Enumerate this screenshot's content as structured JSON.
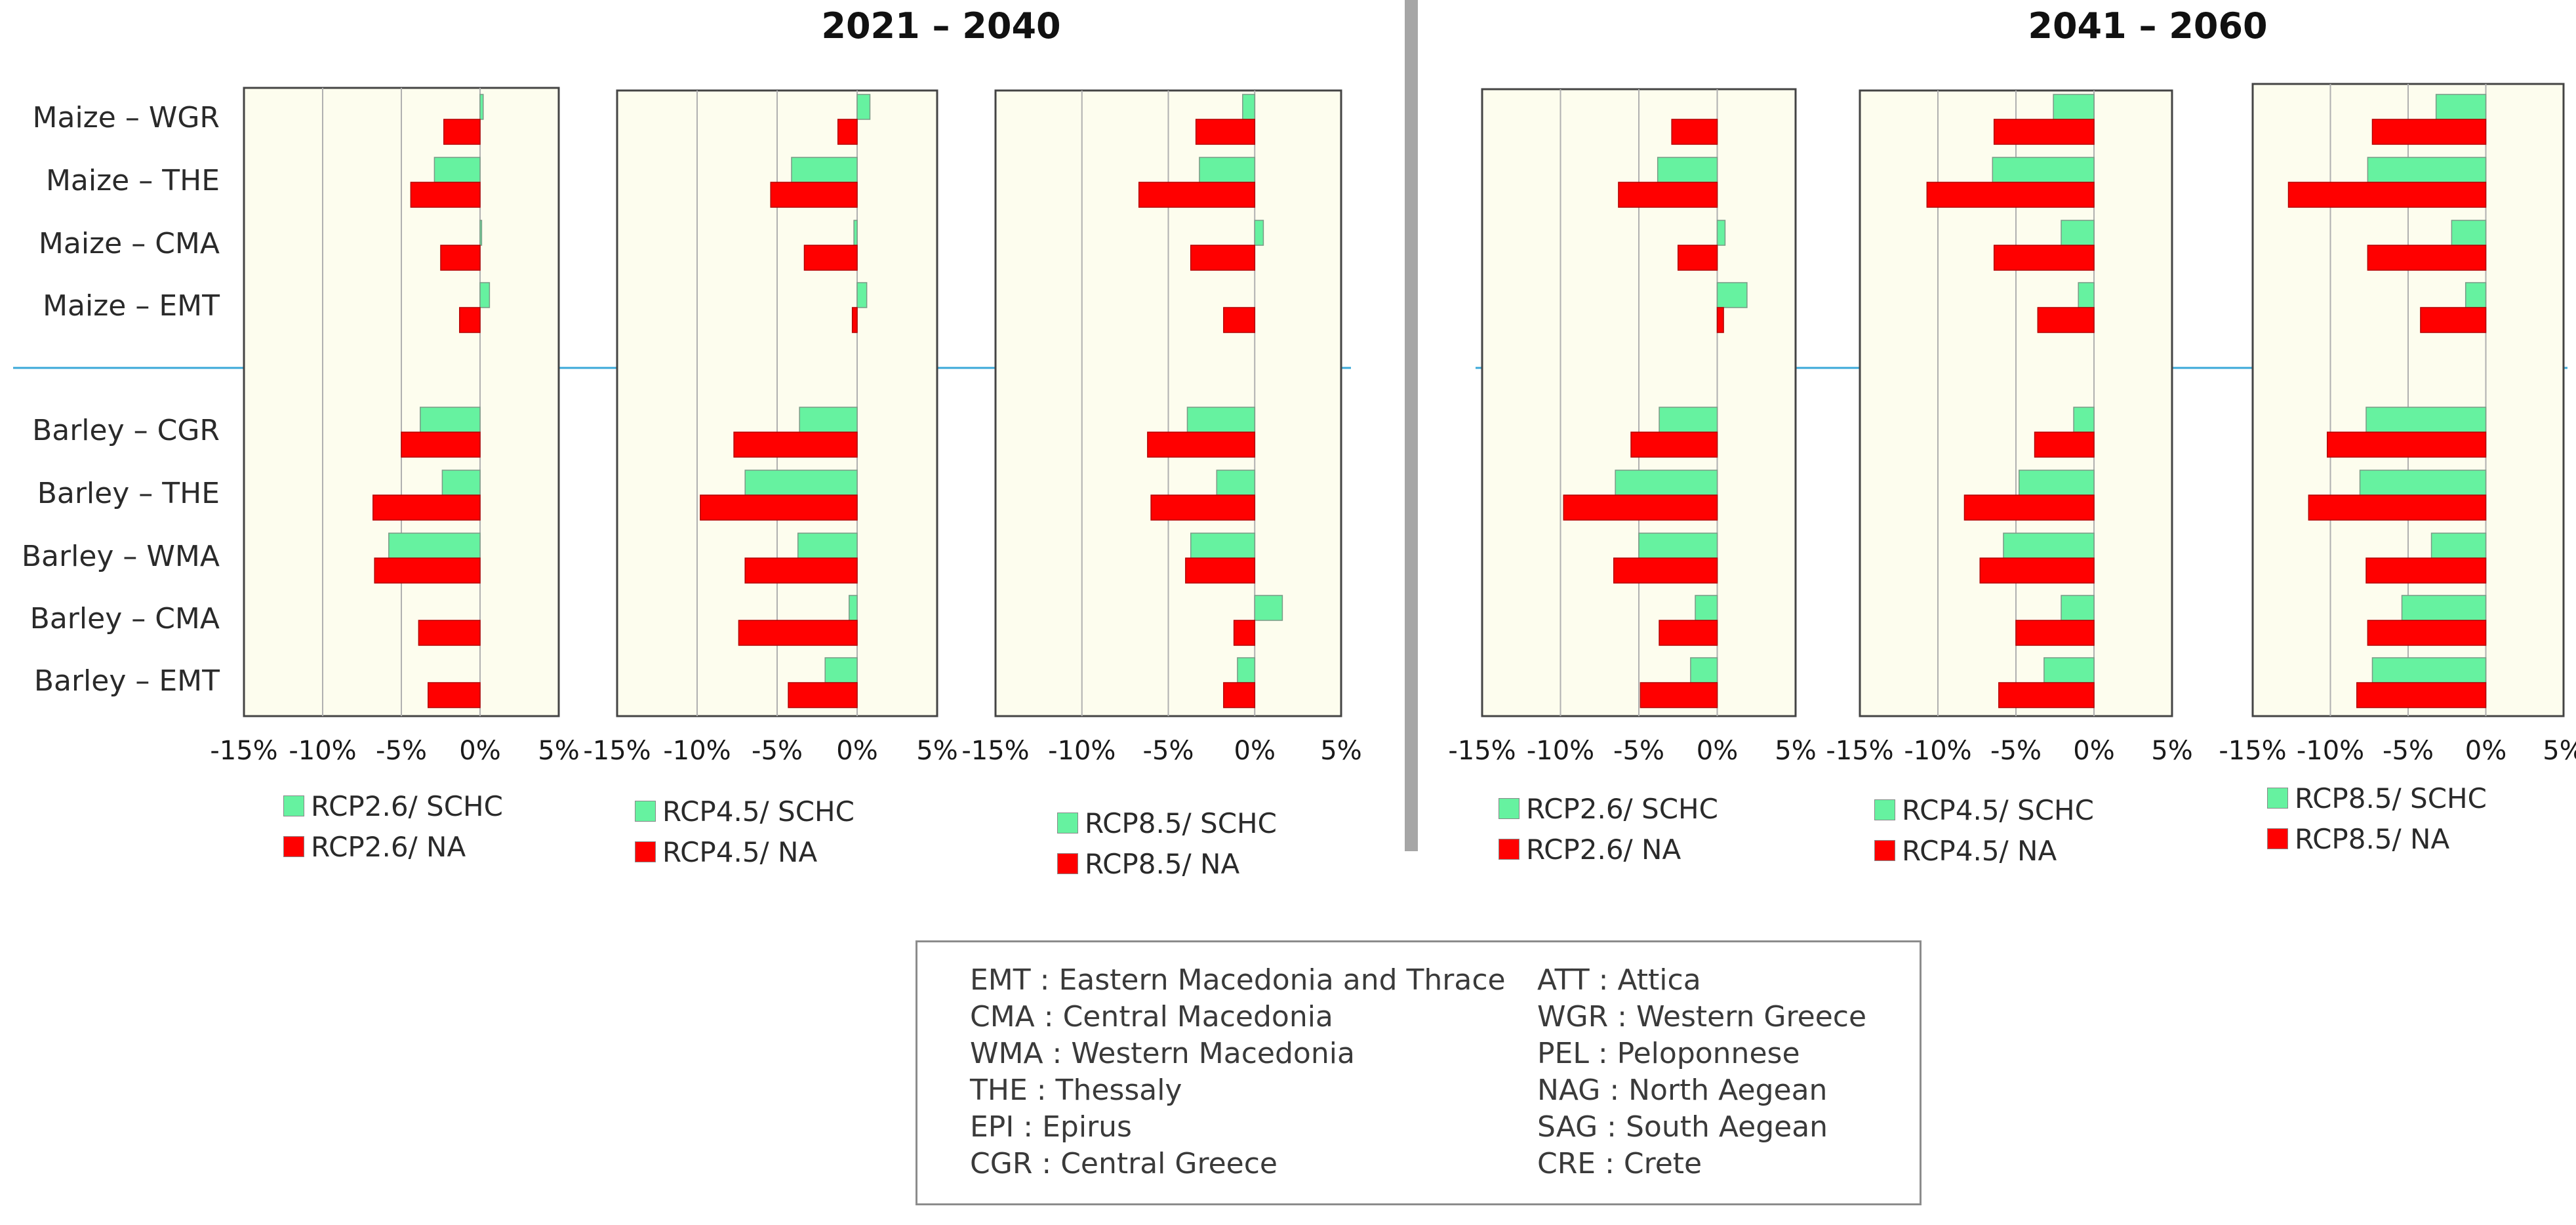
{
  "periods": [
    "2021 – 2040",
    "2041 – 2060"
  ],
  "crops": [
    "Maize – WGR",
    "Maize – THE",
    "Maize – CMA",
    "Maize – EMT",
    "Barley – CGR",
    "Barley – THE",
    "Barley – WMA",
    "Barley – CMA",
    "Barley – EMT"
  ],
  "x_tick_labels": [
    "-15%",
    "-10%",
    "-5%",
    "0%",
    "5%"
  ],
  "colors": {
    "schc": "#66f2a0",
    "na": "#ff0000",
    "plot_bg": "#fdfdee",
    "separator": "#3aa8d8"
  },
  "chart_data": [
    {
      "type": "bar",
      "orientation": "horizontal",
      "period": "2021 – 2040",
      "scenario": "RCP2.6",
      "xlim": [
        -15,
        5
      ],
      "unit": "%",
      "series": [
        {
          "name": "RCP2.6/ SCHC",
          "values": [
            0.2,
            -2.9,
            0.1,
            0.6,
            -3.8,
            -2.4,
            -5.8,
            0,
            0
          ]
        },
        {
          "name": "RCP2.6/ NA",
          "values": [
            -2.3,
            -4.4,
            -2.5,
            -1.3,
            -5.0,
            -6.8,
            -6.7,
            -3.9,
            -3.3
          ]
        }
      ]
    },
    {
      "type": "bar",
      "orientation": "horizontal",
      "period": "2021 – 2040",
      "scenario": "RCP4.5",
      "xlim": [
        -15,
        5
      ],
      "unit": "%",
      "series": [
        {
          "name": "RCP4.5/ SCHC",
          "values": [
            0.8,
            -4.1,
            -0.2,
            0.6,
            -3.6,
            -7.0,
            -3.7,
            -0.5,
            -2.0
          ]
        },
        {
          "name": "RCP4.5/ NA",
          "values": [
            -1.2,
            -5.4,
            -3.3,
            -0.3,
            -7.7,
            -9.8,
            -7.0,
            -7.4,
            -4.3
          ]
        }
      ]
    },
    {
      "type": "bar",
      "orientation": "horizontal",
      "period": "2021 – 2040",
      "scenario": "RCP8.5",
      "xlim": [
        -15,
        5
      ],
      "unit": "%",
      "series": [
        {
          "name": "RCP8.5/ SCHC",
          "values": [
            -0.7,
            -3.2,
            0.5,
            0,
            -3.9,
            -2.2,
            -3.7,
            1.6,
            -1.0
          ]
        },
        {
          "name": "RCP8.5/ NA",
          "values": [
            -3.4,
            -6.7,
            -3.7,
            -1.8,
            -6.2,
            -6.0,
            -4.0,
            -1.2,
            -1.8
          ]
        }
      ]
    },
    {
      "type": "bar",
      "orientation": "horizontal",
      "period": "2041 – 2060",
      "scenario": "RCP2.6",
      "xlim": [
        -15,
        5
      ],
      "unit": "%",
      "series": [
        {
          "name": "RCP2.6/ SCHC",
          "values": [
            0,
            -3.8,
            0.5,
            1.9,
            -3.7,
            -6.5,
            -5.0,
            -1.4,
            -1.7
          ]
        },
        {
          "name": "RCP2.6/ NA",
          "values": [
            -2.9,
            -6.3,
            -2.5,
            0.4,
            -5.5,
            -9.8,
            -6.6,
            -3.7,
            -4.9
          ]
        }
      ]
    },
    {
      "type": "bar",
      "orientation": "horizontal",
      "period": "2041 – 2060",
      "scenario": "RCP4.5",
      "xlim": [
        -15,
        5
      ],
      "unit": "%",
      "series": [
        {
          "name": "RCP4.5/ SCHC",
          "values": [
            -2.6,
            -6.5,
            -2.1,
            -1.0,
            -1.3,
            -4.8,
            -5.8,
            -2.1,
            -3.2
          ]
        },
        {
          "name": "RCP4.5/ NA",
          "values": [
            -6.4,
            -10.7,
            -6.4,
            -3.6,
            -3.8,
            -8.3,
            -7.3,
            -5.0,
            -6.1
          ]
        }
      ]
    },
    {
      "type": "bar",
      "orientation": "horizontal",
      "period": "2041 – 2060",
      "scenario": "RCP8.5",
      "xlim": [
        -15,
        5
      ],
      "unit": "%",
      "series": [
        {
          "name": "RCP8.5/ SCHC",
          "values": [
            -3.2,
            -7.6,
            -2.2,
            -1.3,
            -7.7,
            -8.1,
            -3.5,
            -5.4,
            -7.3
          ]
        },
        {
          "name": "RCP8.5/ NA",
          "values": [
            -7.3,
            -12.7,
            -7.6,
            -4.2,
            -10.2,
            -11.4,
            -7.7,
            -7.6,
            -8.3
          ]
        }
      ]
    }
  ],
  "abbreviations": {
    "left": [
      "EMT : Eastern Macedonia and Thrace",
      "CMA : Central Macedonia",
      "WMA : Western Macedonia",
      "THE : Thessaly",
      "EPI : Epirus",
      "CGR : Central Greece"
    ],
    "right": [
      "ATT : Attica",
      "WGR : Western Greece",
      "PEL : Peloponnese",
      "NAG : North Aegean",
      "SAG : South Aegean",
      "CRE : Crete"
    ]
  }
}
